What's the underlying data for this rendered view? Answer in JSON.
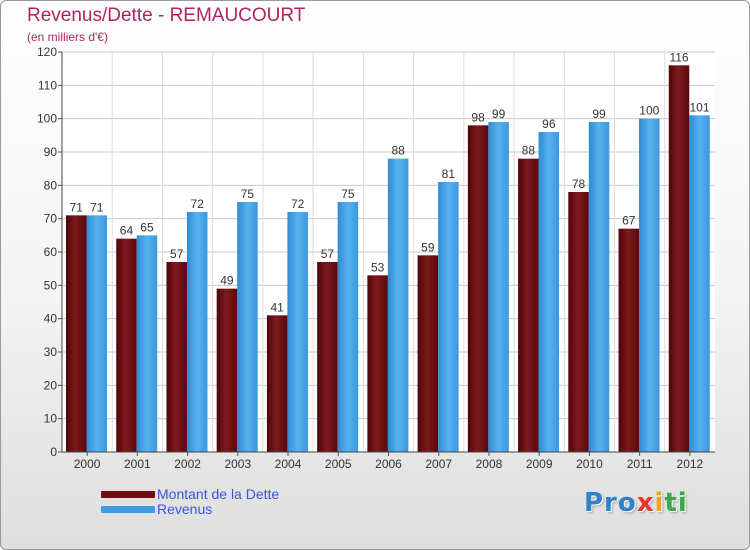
{
  "title": "Revenus/Dette - REMAUCOURT",
  "subtitle": "(en milliers d'€)",
  "logo_text": "Proxiti",
  "colors": {
    "debt": "#6e0f12",
    "revenue": "#3f9ee3",
    "title": "#b2225e",
    "legend_text": "#3a55d8",
    "grid": "#c8c8c8"
  },
  "chart_data": {
    "type": "bar",
    "categories": [
      "2000",
      "2001",
      "2002",
      "2003",
      "2004",
      "2005",
      "2006",
      "2007",
      "2008",
      "2009",
      "2010",
      "2011",
      "2012"
    ],
    "series": [
      {
        "name": "Montant de la Dette",
        "values": [
          71,
          64,
          57,
          49,
          41,
          57,
          53,
          59,
          98,
          88,
          78,
          67,
          116
        ]
      },
      {
        "name": "Revenus",
        "values": [
          71,
          65,
          72,
          75,
          72,
          75,
          88,
          81,
          99,
          96,
          99,
          100,
          101
        ]
      }
    ],
    "yticks": [
      0,
      10,
      20,
      30,
      40,
      50,
      60,
      70,
      80,
      90,
      100,
      110,
      120
    ],
    "ylim": [
      0,
      120
    ],
    "grid": true,
    "legend_position": "bottom-left"
  }
}
